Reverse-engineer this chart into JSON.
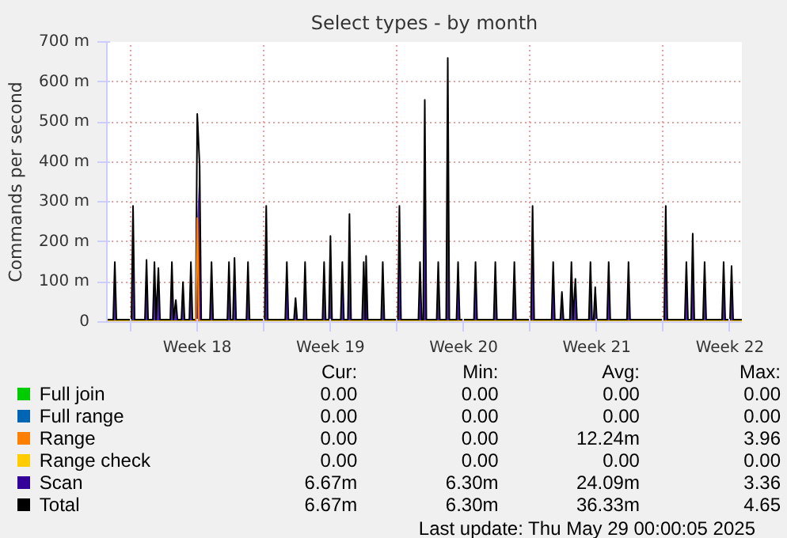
{
  "chart_data": {
    "type": "line",
    "title": "Select types - by month",
    "ylabel": "Commands per second",
    "x": [
      "2025-04-26T18:00",
      "2025-04-27T02:00",
      "2025-04-27T04:00",
      "2025-04-27T06:00",
      "2025-04-28T01:00",
      "2025-04-28T03:00",
      "2025-04-28T05:00",
      "2025-04-28T18:00",
      "2025-04-28T20:00",
      "2025-04-28T22:00",
      "2025-04-29T04:00",
      "2025-04-29T06:00",
      "2025-04-29T08:00",
      "2025-04-29T11:00",
      "2025-04-29T13:00",
      "2025-04-30T02:00",
      "2025-04-30T04:00",
      "2025-04-30T06:00",
      "2025-04-30T09:00",
      "2025-04-30T11:00",
      "2025-04-30T16:00",
      "2025-04-30T18:00",
      "2025-04-30T20:00",
      "2025-05-01T02:00",
      "2025-05-01T04:00",
      "2025-05-01T06:00",
      "2025-05-01T10:00",
      "2025-05-01T12:00",
      "2025-05-01T15:00",
      "2025-05-01T17:00",
      "2025-05-02T04:00",
      "2025-05-02T06:00",
      "2025-05-02T08:00",
      "2025-05-03T02:00",
      "2025-05-03T04:00",
      "2025-05-03T06:00",
      "2025-05-03T09:00",
      "2025-05-03T11:00",
      "2025-05-03T13:00",
      "2025-05-04T02:00",
      "2025-05-04T04:00",
      "2025-05-04T06:00",
      "2025-05-05T01:00",
      "2025-05-05T03:00",
      "2025-05-05T05:00",
      "2025-05-06T03:00",
      "2025-05-06T05:00",
      "2025-05-06T07:00",
      "2025-05-06T14:00",
      "2025-05-06T16:00",
      "2025-05-06T18:00",
      "2025-05-07T02:00",
      "2025-05-07T04:00",
      "2025-05-07T06:00",
      "2025-05-08T02:00",
      "2025-05-08T04:00",
      "2025-05-08T06:00",
      "2025-05-08T10:00",
      "2025-05-08T12:00",
      "2025-05-08T14:00",
      "2025-05-09T01:00",
      "2025-05-09T03:00",
      "2025-05-09T05:00",
      "2025-05-09T10:00",
      "2025-05-09T12:00",
      "2025-05-09T14:00",
      "2025-05-10T04:00",
      "2025-05-10T06:00",
      "2025-05-10T08:00",
      "2025-05-10T09:00",
      "2025-05-10T11:00",
      "2025-05-11T04:00",
      "2025-05-11T06:00",
      "2025-05-11T08:00",
      "2025-05-12T01:00",
      "2025-05-12T03:00",
      "2025-05-12T05:00",
      "2025-05-13T03:00",
      "2025-05-13T05:00",
      "2025-05-13T07:00",
      "2025-05-13T09:00",
      "2025-05-13T11:00",
      "2025-05-13T13:00",
      "2025-05-14T02:00",
      "2025-05-14T04:00",
      "2025-05-14T06:00",
      "2025-05-14T14:00",
      "2025-05-14T16:00",
      "2025-05-14T18:00",
      "2025-05-15T03:00",
      "2025-05-15T05:00",
      "2025-05-15T07:00",
      "2025-05-16T01:00",
      "2025-05-16T03:00",
      "2025-05-16T05:00",
      "2025-05-17T02:00",
      "2025-05-17T04:00",
      "2025-05-17T06:00",
      "2025-05-18T02:00",
      "2025-05-18T04:00",
      "2025-05-18T06:00",
      "2025-05-19T01:00",
      "2025-05-19T03:00",
      "2025-05-19T05:00",
      "2025-05-20T03:00",
      "2025-05-20T05:00",
      "2025-05-20T07:00",
      "2025-05-20T14:00",
      "2025-05-20T16:00",
      "2025-05-20T18:00",
      "2025-05-21T02:00",
      "2025-05-21T04:00",
      "2025-05-21T06:00",
      "2025-05-21T09:00",
      "2025-05-21T11:00",
      "2025-05-22T02:00",
      "2025-05-22T04:00",
      "2025-05-22T06:00",
      "2025-05-22T08:00",
      "2025-05-22T10:00",
      "2025-05-22T12:00",
      "2025-05-23T01:00",
      "2025-05-23T03:00",
      "2025-05-23T05:00",
      "2025-05-24T02:00",
      "2025-05-24T04:00",
      "2025-05-24T06:00",
      "2025-05-26T01:00",
      "2025-05-26T03:00",
      "2025-05-26T05:00",
      "2025-05-27T03:00",
      "2025-05-27T05:00",
      "2025-05-27T07:00",
      "2025-05-27T11:00",
      "2025-05-27T13:00",
      "2025-05-27T15:00",
      "2025-05-28T02:00",
      "2025-05-28T04:00",
      "2025-05-28T06:00",
      "2025-05-29T02:00",
      "2025-05-29T04:00",
      "2025-05-29T06:00",
      "2025-05-29T12:00",
      "2025-05-29T14:00",
      "2025-05-29T16:00",
      "2025-05-30T03:00"
    ],
    "series": [
      {
        "name": "Full join",
        "color": "#00cc00",
        "values": [
          null,
          null,
          null,
          null,
          null,
          null,
          null,
          null,
          null,
          null,
          null,
          null,
          null,
          null,
          null,
          null,
          null,
          null,
          null,
          null,
          null,
          null,
          null,
          null,
          null,
          null,
          null,
          null,
          null,
          null,
          null,
          null,
          null,
          null,
          null,
          null,
          null,
          null,
          null,
          null,
          null,
          null,
          null,
          null,
          null,
          null,
          null,
          null,
          null,
          null,
          null,
          null,
          null,
          null,
          null,
          null,
          null,
          null,
          null,
          null,
          null,
          null,
          null,
          null,
          null,
          null,
          null,
          null,
          null,
          null,
          null,
          null,
          null,
          null,
          null,
          null,
          null,
          null,
          null,
          null,
          null,
          null,
          null,
          null,
          null,
          null,
          null,
          null,
          null,
          null,
          null,
          null,
          null,
          null,
          null,
          null,
          null,
          null,
          null,
          null,
          null,
          null,
          null,
          null,
          null,
          null,
          null,
          null,
          null,
          null,
          null,
          null,
          null,
          null,
          null,
          null,
          null,
          null,
          null,
          null,
          null,
          null,
          null,
          null,
          null,
          null,
          null,
          null,
          null,
          null,
          null,
          null,
          null,
          null,
          null,
          null,
          null,
          null,
          null,
          null,
          null,
          null,
          null,
          null,
          null,
          null
        ]
      },
      {
        "name": "Full range",
        "color": "#0066b3",
        "values": [
          null,
          null,
          null,
          null,
          null,
          null,
          null,
          null,
          null,
          null,
          null,
          null,
          null,
          null,
          null,
          null,
          null,
          null,
          null,
          null,
          null,
          null,
          null,
          null,
          null,
          null,
          null,
          null,
          null,
          null,
          null,
          null,
          null,
          null,
          null,
          null,
          null,
          null,
          null,
          null,
          null,
          null,
          null,
          null,
          null,
          null,
          null,
          null,
          null,
          null,
          null,
          null,
          null,
          null,
          null,
          null,
          null,
          null,
          null,
          null,
          null,
          null,
          null,
          null,
          null,
          null,
          null,
          null,
          null,
          null,
          null,
          null,
          null,
          null,
          null,
          null,
          null,
          null,
          null,
          null,
          null,
          null,
          null,
          null,
          null,
          null,
          null,
          null,
          null,
          null,
          null,
          null,
          null,
          null,
          null,
          null,
          null,
          null,
          null,
          null,
          null,
          null,
          null,
          null,
          null,
          null,
          null,
          null,
          null,
          null,
          null,
          null,
          null,
          null,
          null,
          null,
          null,
          null,
          null,
          null,
          null,
          null,
          null,
          null,
          null,
          null,
          null,
          null,
          null,
          null,
          null,
          null,
          null,
          null,
          null,
          null,
          null,
          null,
          null,
          null,
          null,
          null,
          null,
          null,
          null,
          null
        ]
      },
      {
        "name": "Range",
        "color": "#ff8000",
        "x": [
          "2025-05-01T10:00",
          "2025-05-01T12:00",
          "2025-05-01T14:00"
        ],
        "values": [
          0,
          260,
          0
        ]
      },
      {
        "name": "Range check",
        "color": "#ffcc00",
        "x": [
          "2025-04-26T18:00",
          "2025-05-30T03:00"
        ],
        "values": [
          0,
          0
        ]
      },
      {
        "name": "Scan",
        "color": "#330099",
        "type": "area",
        "values": [
          6,
          6,
          150,
          6,
          6,
          290,
          6,
          6,
          155,
          6,
          6,
          150,
          6,
          135,
          6,
          6,
          150,
          6,
          55,
          6,
          6,
          100,
          6,
          6,
          150,
          6,
          6,
          260,
          390,
          6,
          6,
          150,
          6,
          6,
          150,
          6,
          6,
          160,
          6,
          6,
          150,
          6,
          6,
          290,
          6,
          6,
          150,
          6,
          6,
          60,
          6,
          6,
          150,
          6,
          6,
          150,
          6,
          6,
          215,
          6,
          6,
          150,
          6,
          6,
          270,
          6,
          6,
          150,
          6,
          165,
          6,
          6,
          150,
          6,
          6,
          290,
          6,
          6,
          150,
          6,
          6,
          555,
          6,
          6,
          150,
          6,
          6,
          660,
          6,
          6,
          150,
          6,
          6,
          150,
          6,
          6,
          150,
          6,
          6,
          150,
          6,
          6,
          290,
          6,
          6,
          150,
          6,
          6,
          75,
          6,
          6,
          150,
          6,
          108,
          6,
          6,
          150,
          6,
          6,
          87,
          6,
          6,
          150,
          6,
          6,
          150,
          6,
          6,
          290,
          6,
          6,
          150,
          6,
          6,
          221,
          6,
          6,
          150,
          6,
          6,
          150,
          6,
          6,
          140,
          6,
          6
        ]
      },
      {
        "name": "Total",
        "color": "#000000",
        "values": [
          6,
          6,
          150,
          6,
          6,
          290,
          6,
          6,
          155,
          6,
          6,
          150,
          6,
          135,
          6,
          6,
          150,
          6,
          55,
          6,
          6,
          100,
          6,
          6,
          150,
          6,
          6,
          520,
          390,
          6,
          6,
          150,
          6,
          6,
          150,
          6,
          6,
          160,
          6,
          6,
          150,
          6,
          6,
          290,
          6,
          6,
          150,
          6,
          6,
          60,
          6,
          6,
          150,
          6,
          6,
          150,
          6,
          6,
          215,
          6,
          6,
          150,
          6,
          6,
          270,
          6,
          6,
          150,
          6,
          165,
          6,
          6,
          150,
          6,
          6,
          290,
          6,
          6,
          150,
          6,
          6,
          555,
          6,
          6,
          150,
          6,
          6,
          660,
          6,
          6,
          150,
          6,
          6,
          150,
          6,
          6,
          150,
          6,
          6,
          150,
          6,
          6,
          290,
          6,
          6,
          150,
          6,
          6,
          75,
          6,
          6,
          150,
          6,
          108,
          6,
          6,
          150,
          6,
          6,
          87,
          6,
          6,
          150,
          6,
          6,
          150,
          6,
          6,
          290,
          6,
          6,
          150,
          6,
          6,
          221,
          6,
          6,
          150,
          6,
          6,
          150,
          6,
          6,
          140,
          6,
          6
        ]
      }
    ],
    "xlim": [
      "2025-04-26T18:00",
      "2025-05-30T03:00"
    ],
    "xticks": [
      {
        "value": "2025-04-28",
        "label": null
      },
      {
        "value": "2025-05-01T12:00",
        "label": "Week 18"
      },
      {
        "value": "2025-05-05",
        "label": null
      },
      {
        "value": "2025-05-08T12:00",
        "label": "Week 19"
      },
      {
        "value": "2025-05-12",
        "label": null
      },
      {
        "value": "2025-05-15T12:00",
        "label": "Week 20"
      },
      {
        "value": "2025-05-19",
        "label": null
      },
      {
        "value": "2025-05-22T12:00",
        "label": "Week 21"
      },
      {
        "value": "2025-05-26",
        "label": null
      },
      {
        "value": "2025-05-29T12:00",
        "label": "Week 22"
      }
    ],
    "ylim": [
      0,
      700
    ],
    "yticks": [
      0,
      {
        "value": 100,
        "label": "100 m"
      },
      {
        "value": 200,
        "label": "200 m"
      },
      {
        "value": 300,
        "label": "300 m"
      },
      {
        "value": 400,
        "label": "400 m"
      },
      {
        "value": 500,
        "label": "500 m"
      },
      {
        "value": 600,
        "label": "600 m"
      },
      {
        "value": 700,
        "label": "700 m"
      }
    ],
    "grid": true,
    "legend": "bottom",
    "annotations": [
      "Cur:",
      "Min:",
      "Avg:",
      "Max:",
      "0.00",
      "0.00",
      "0.00",
      "0.00",
      "0.00",
      "0.00",
      "0.00",
      "0.00",
      "0.00",
      "0.00",
      "12.24m",
      "3.96",
      "0.00",
      "0.00",
      "0.00",
      "0.00",
      "6.67m",
      "6.30m",
      "24.09m",
      "3.36",
      "6.67m",
      "6.30m",
      "36.33m",
      "4.65",
      "Last update: Thu May 29 00:00:05 2025"
    ]
  }
}
